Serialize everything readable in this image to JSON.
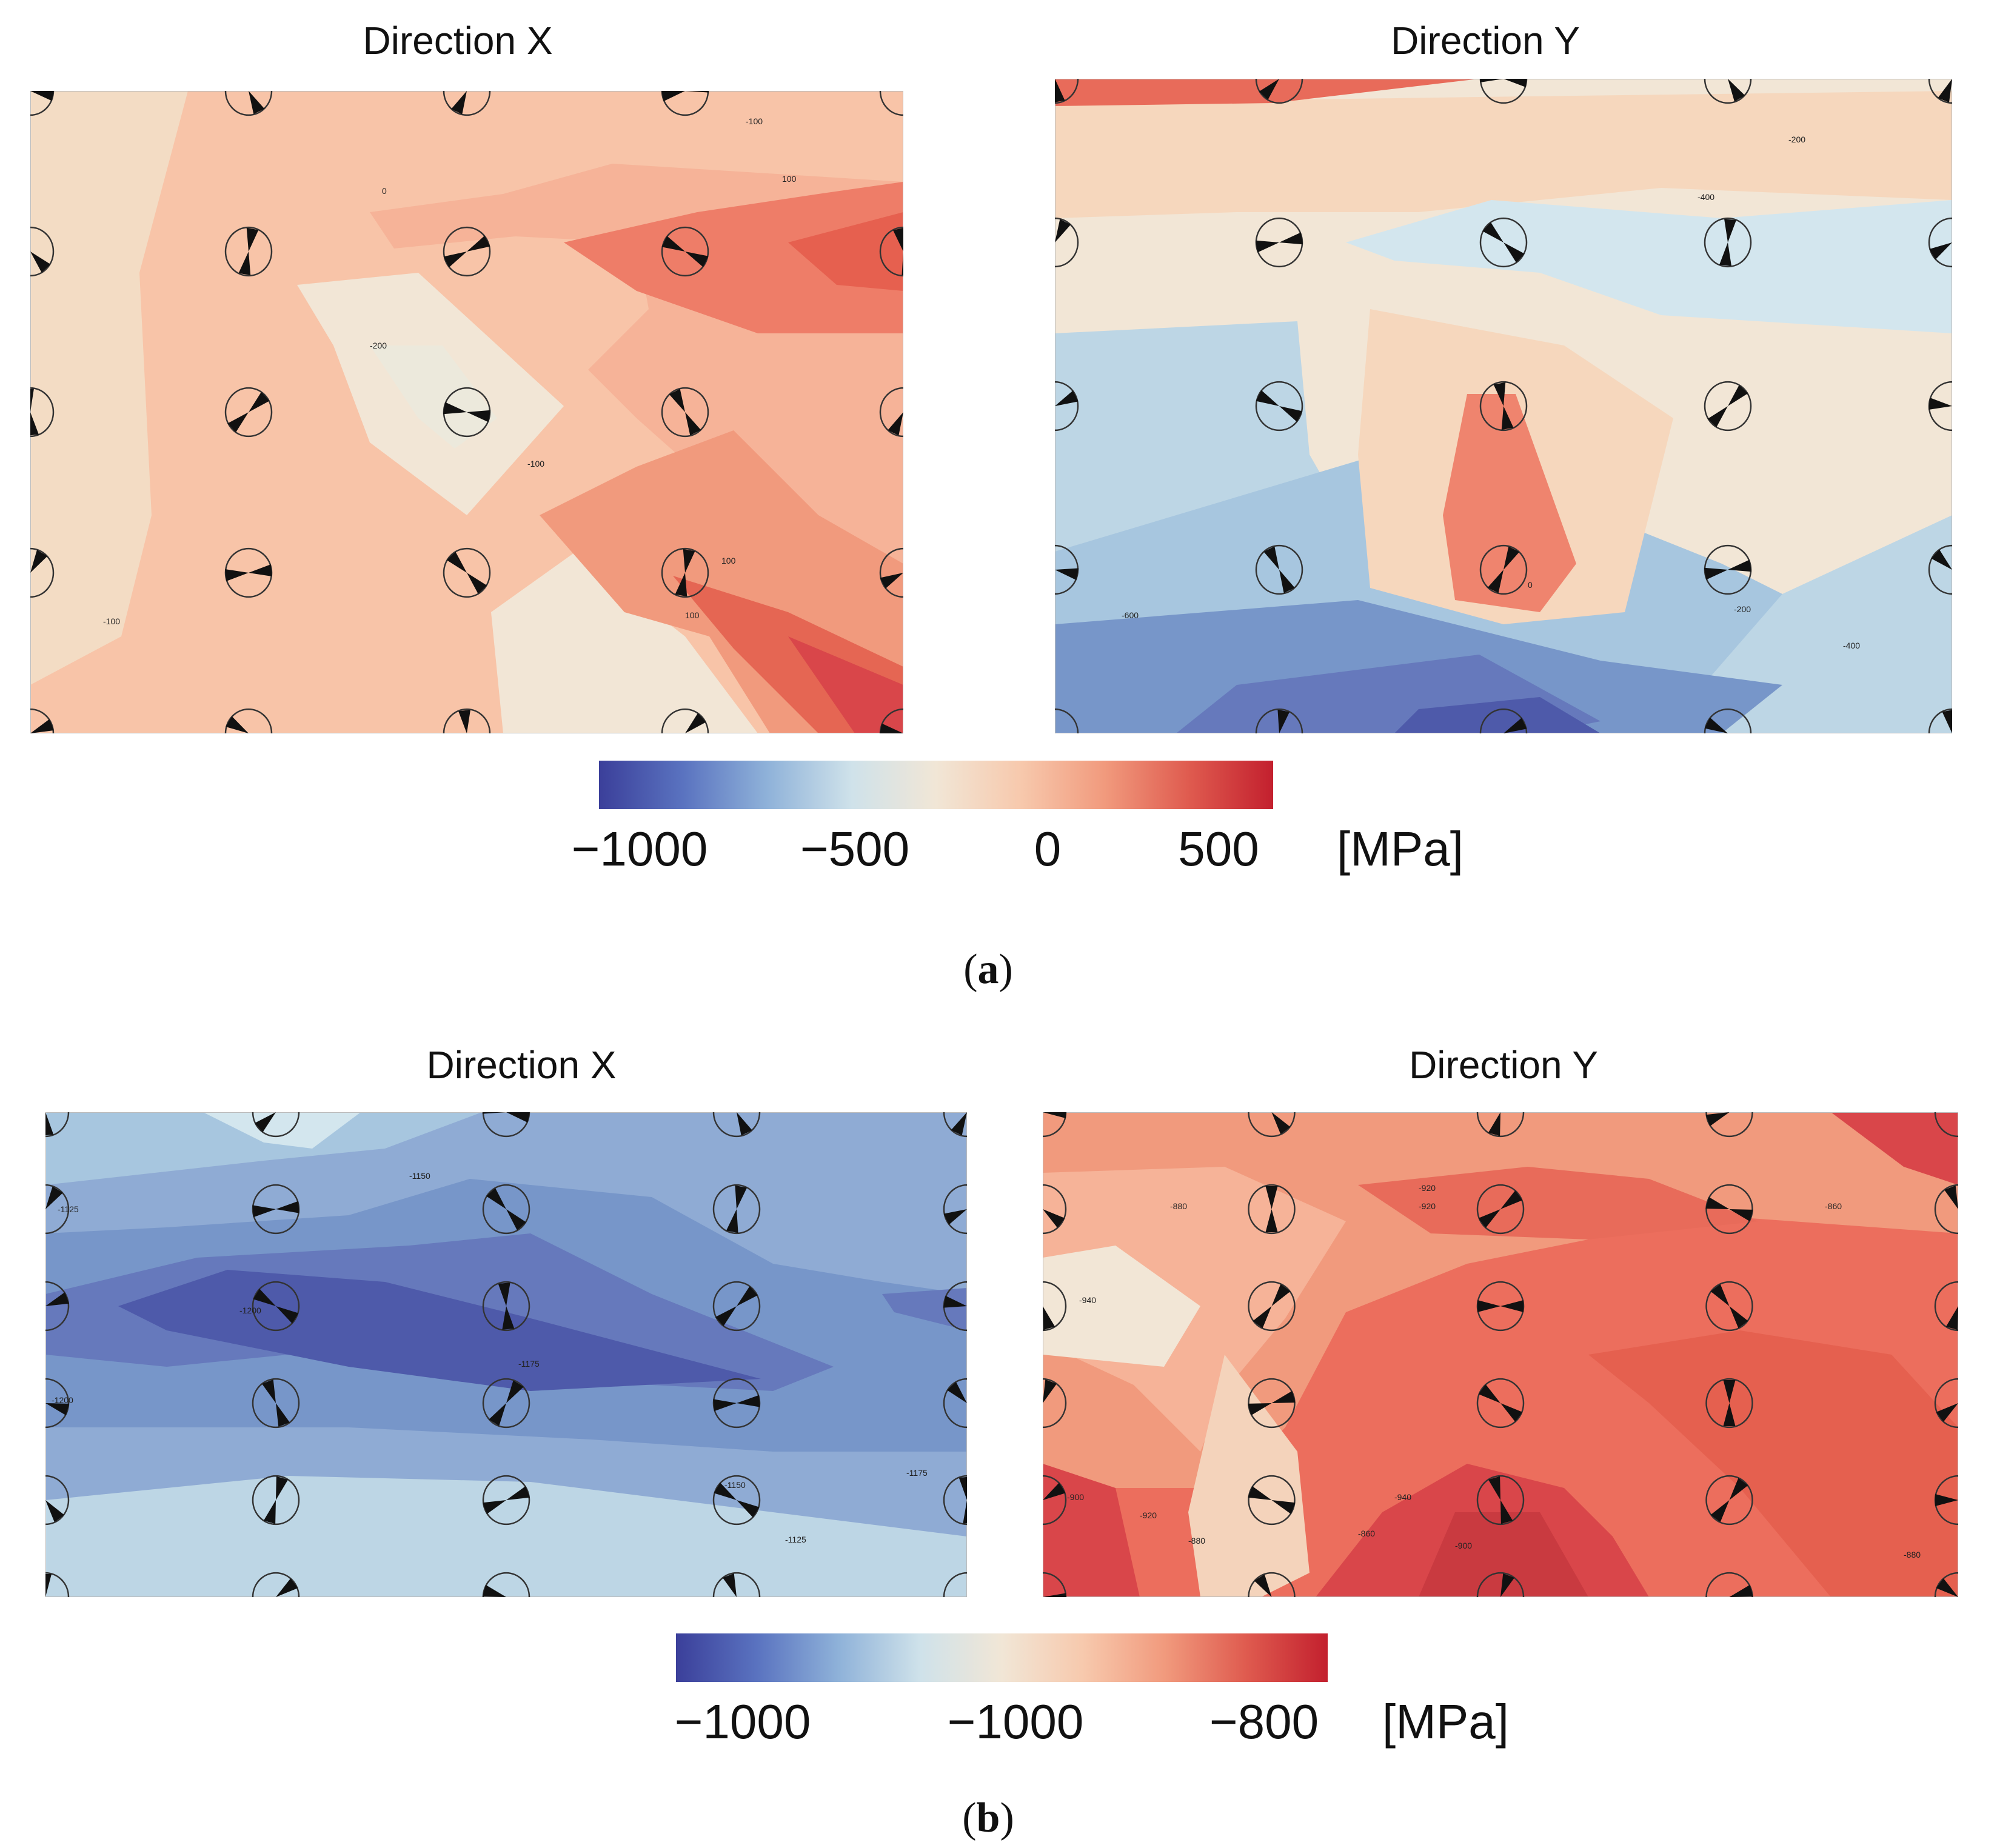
{
  "colors": {
    "cmap": [
      "#3b3f9a",
      "#5a73c0",
      "#8fb2d9",
      "#cfe2ea",
      "#f1e6d6",
      "#f7c9ad",
      "#f19a7d",
      "#df5b4f",
      "#c3202e"
    ],
    "region_colors": {
      "dark_red": "#d9464a",
      "red": "#ec6e5d",
      "salmon": "#f4a185",
      "peach": "#f8c4a8",
      "cream": "#f2e6d6",
      "pale_blue": "#d3e6ee",
      "light_blue": "#a7c6df",
      "blue": "#7796c9",
      "mid_blue": "#6679bc",
      "dark_blue": "#4e5aaa"
    }
  },
  "chart_data": [
    {
      "id": "a-x",
      "type": "heatmap",
      "panel": "a",
      "title": "Direction X",
      "grid_rows": 5,
      "grid_cols": 5,
      "background": "peach",
      "contour_labels": [
        "-100",
        "100",
        "0",
        "-200",
        "-100",
        "100",
        "100",
        "-100"
      ]
    },
    {
      "id": "a-y",
      "type": "heatmap",
      "panel": "a",
      "title": "Direction Y",
      "grid_rows": 5,
      "grid_cols": 5,
      "background": "cream",
      "contour_labels": [
        "-200",
        "-400",
        "0",
        "-200",
        "-600",
        "-400"
      ]
    },
    {
      "id": "b-x",
      "type": "heatmap",
      "panel": "b",
      "title": "Direction X",
      "grid_rows": 6,
      "grid_cols": 5,
      "background": "light_blue",
      "contour_labels": [
        "-1125",
        "-1150",
        "-1200",
        "-1175",
        "-1200",
        "-1150",
        "-1125",
        "-1175"
      ]
    },
    {
      "id": "b-y",
      "type": "heatmap",
      "panel": "b",
      "title": "Direction Y",
      "grid_rows": 6,
      "grid_cols": 5,
      "background": "red",
      "contour_labels": [
        "-880",
        "-920",
        "-860",
        "-920",
        "-940",
        "-860",
        "-880",
        "-900",
        "-920",
        "-880",
        "-940",
        "-860",
        "-900",
        "-880"
      ]
    },
    {
      "id": "a-colorbar",
      "type": "colorbar",
      "range": [
        -1100,
        700
      ],
      "ticks": [
        -1000,
        -500,
        0,
        500
      ],
      "tick_labels": [
        "−1000",
        "−500",
        "0",
        "500"
      ],
      "unit": "[MPa]"
    },
    {
      "id": "b-colorbar",
      "type": "colorbar",
      "tick_labels": [
        "−1000",
        "−1000",
        "−800"
      ],
      "unit": "[MPa]"
    }
  ],
  "captions": {
    "a": "a",
    "b": "b"
  }
}
